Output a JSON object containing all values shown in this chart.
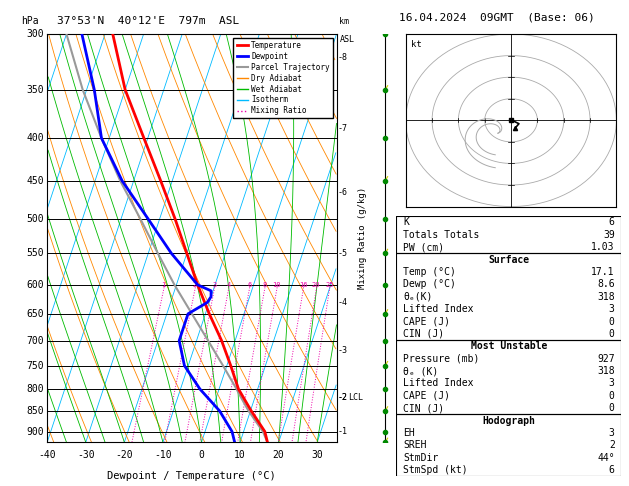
{
  "title": "37°53'N  40°12'E  797m  ASL",
  "date_title": "16.04.2024  09GMT  (Base: 06)",
  "xlabel": "Dewpoint / Temperature (°C)",
  "pressure_levels": [
    300,
    350,
    400,
    450,
    500,
    550,
    600,
    650,
    700,
    750,
    800,
    850,
    900
  ],
  "temp_range_min": -40,
  "temp_range_max": 35,
  "temp_ticks": [
    -40,
    -30,
    -20,
    -10,
    0,
    10,
    20,
    30
  ],
  "km_ticks": [
    8,
    7,
    6,
    5,
    4,
    3,
    2,
    1
  ],
  "km_pressures": [
    320,
    390,
    465,
    550,
    630,
    720,
    820,
    900
  ],
  "pmin": 300,
  "pmax": 927,
  "skew_factor": 35,
  "background_color": "#ffffff",
  "temp_profile_pressure": [
    927,
    900,
    850,
    800,
    750,
    700,
    650,
    600,
    550,
    500,
    450,
    400,
    350,
    300
  ],
  "temp_profile_temp": [
    17.1,
    15.5,
    10.2,
    5.0,
    1.0,
    -3.5,
    -9.0,
    -14.5,
    -20.0,
    -26.0,
    -33.0,
    -41.0,
    -50.0,
    -58.0
  ],
  "temp_color": "#ff0000",
  "temp_lw": 2.0,
  "dewpoint_pressure": [
    927,
    900,
    850,
    800,
    750,
    700,
    650,
    630,
    620,
    610,
    600,
    550,
    500,
    450,
    400,
    350,
    300
  ],
  "dewpoint_temp": [
    8.6,
    7.0,
    2.0,
    -5.0,
    -11.0,
    -14.5,
    -14.5,
    -10.5,
    -10.0,
    -10.5,
    -14.5,
    -24.0,
    -33.0,
    -43.0,
    -52.0,
    -58.0,
    -66.0
  ],
  "dewp_color": "#0000ff",
  "dewp_lw": 2.0,
  "parcel_pressure": [
    927,
    900,
    850,
    820,
    800,
    750,
    700,
    650,
    600,
    550,
    500,
    450,
    400,
    350,
    300
  ],
  "parcel_temp": [
    17.1,
    15.0,
    9.5,
    6.5,
    4.5,
    -1.0,
    -7.0,
    -13.5,
    -20.5,
    -27.5,
    -35.0,
    -43.5,
    -52.0,
    -61.0,
    -70.0
  ],
  "parcel_color": "#999999",
  "parcel_lw": 1.5,
  "lcl_pressure": 820,
  "isotherm_color": "#00bbff",
  "dry_adiabat_color": "#ff8800",
  "wet_adiabat_color": "#00bb00",
  "mixing_ratio_color": "#ee00aa",
  "mixing_ratio_values": [
    1,
    2,
    3,
    4,
    6,
    8,
    10,
    16,
    20,
    25
  ],
  "legend_labels": [
    "Temperature",
    "Dewpoint",
    "Parcel Trajectory",
    "Dry Adiabat",
    "Wet Adiabat",
    "Isotherm",
    "Mixing Ratio"
  ],
  "legend_colors": [
    "#ff0000",
    "#0000ff",
    "#999999",
    "#ff8800",
    "#00bb00",
    "#00bbff",
    "#ee00aa"
  ],
  "legend_lws": [
    2,
    2,
    1.5,
    1,
    1,
    1,
    1
  ],
  "legend_ls": [
    "solid",
    "solid",
    "solid",
    "solid",
    "solid",
    "solid",
    "dotted"
  ],
  "K": 6,
  "TT": 39,
  "PW": 1.03,
  "surf_temp": 17.1,
  "surf_dewp": 8.6,
  "surf_thetae": 318,
  "surf_li": 3,
  "surf_cape": 0,
  "surf_cin": 0,
  "mu_pressure": 927,
  "mu_thetae": 318,
  "mu_li": 3,
  "mu_cape": 0,
  "mu_cin": 0,
  "hodo_eh": 3,
  "hodo_sreh": 2,
  "hodo_stmdir": "44°",
  "hodo_stmspd": 6
}
